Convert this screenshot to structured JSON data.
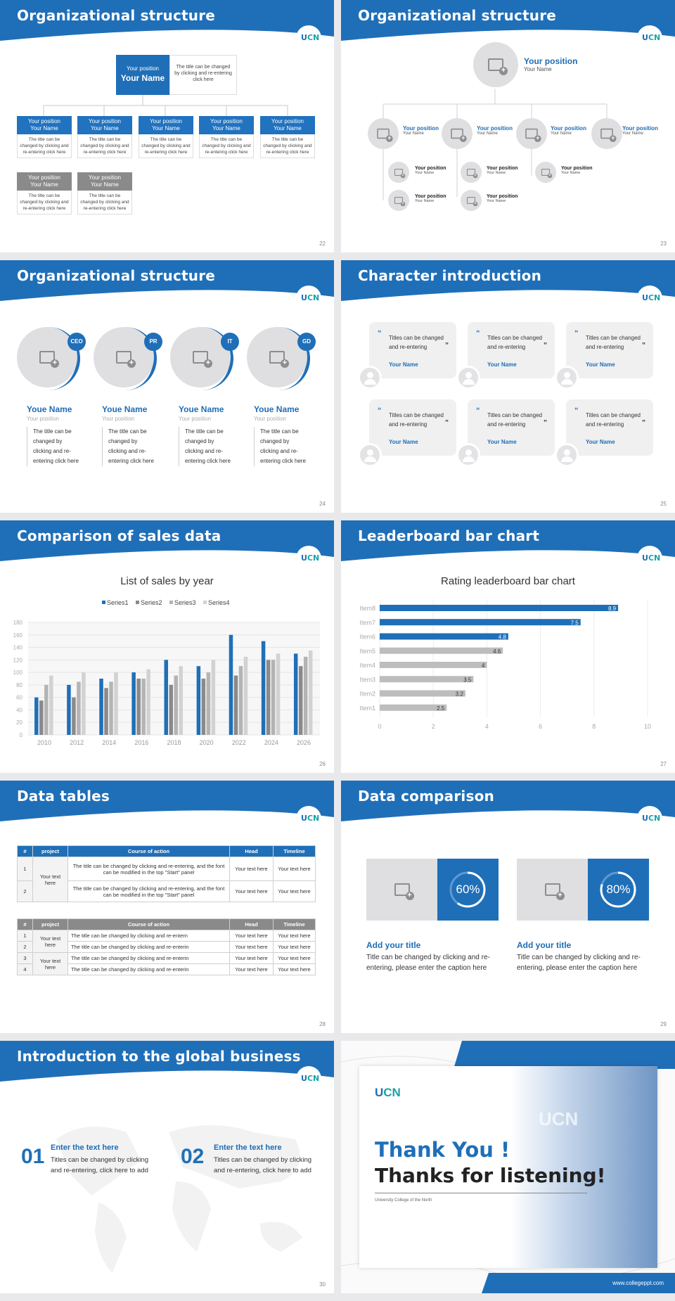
{
  "logo": {
    "text_a": "U",
    "text_b": "CN"
  },
  "slide22": {
    "title": "Organizational structure",
    "page": "22",
    "top": {
      "position": "Your position",
      "name": "Your Name",
      "desc": "The title can be changed by clicking and re-entering click here"
    },
    "nodes": [
      {
        "position": "Your position",
        "name": "Your Name",
        "desc": "The title can be changed by clicking and re-entering click here"
      },
      {
        "position": "Your position",
        "name": "Your Name",
        "desc": "The title can be changed by clicking and re-entering click here"
      },
      {
        "position": "Your position",
        "name": "Your Name",
        "desc": "The title can be changed by clicking and re-entering click here"
      },
      {
        "position": "Your position",
        "name": "Your Name",
        "desc": "The title can be changed by clicking and re-entering click here"
      },
      {
        "position": "Your position",
        "name": "Your Name",
        "desc": "The title can be changed by clicking and re-entering click here"
      },
      {
        "position": "Your position",
        "name": "Your Name",
        "desc": "The title can be changed by clicking and re-entering click here"
      },
      {
        "position": "Your position",
        "name": "Your Name",
        "desc": "The title can be changed by clicking and re-entering click here"
      }
    ]
  },
  "slide23": {
    "title": "Organizational structure",
    "page": "23",
    "top": {
      "position": "Your position",
      "name": "Your Name"
    },
    "mid": [
      {
        "position": "Your position",
        "name": "Your Name"
      },
      {
        "position": "Your position",
        "name": "Your Name"
      },
      {
        "position": "Your position",
        "name": "Your Name"
      },
      {
        "position": "Your position",
        "name": "Your Name"
      }
    ],
    "low": [
      {
        "position": "Your position",
        "name": "Your Name"
      },
      {
        "position": "Your position",
        "name": "Your Name"
      },
      {
        "position": "Your position",
        "name": "Your Name"
      },
      {
        "position": "Your position",
        "name": "Your Name"
      },
      {
        "position": "Your position",
        "name": "Your Name"
      }
    ]
  },
  "slide24": {
    "title": "Organizational structure",
    "page": "24",
    "people": [
      {
        "badge": "CEO",
        "name": "Youe Name",
        "position": "Your position",
        "desc": "The title can be changed by clicking and re-entering click here"
      },
      {
        "badge": "PR",
        "name": "Youe Name",
        "position": "Your position",
        "desc": "The title can be changed by clicking and re-entering click here"
      },
      {
        "badge": "IT",
        "name": "Youe Name",
        "position": "Your position",
        "desc": "The title can be changed by clicking and re-entering click here"
      },
      {
        "badge": "GD",
        "name": "Youe Name",
        "position": "Your position",
        "desc": "The title can be changed by clicking and re-entering click here"
      }
    ]
  },
  "slide25": {
    "title": "Character introduction",
    "page": "25",
    "cards": [
      {
        "text": "Titles can be changed and re-entering",
        "name": "Your Name"
      },
      {
        "text": "Titles can be changed and re-entering",
        "name": "Your Name"
      },
      {
        "text": "Titles can be changed and re-entering",
        "name": "Your Name"
      },
      {
        "text": "Titles can be changed and re-entering",
        "name": "Your Name"
      },
      {
        "text": "Titles can be changed and re-entering",
        "name": "Your Name"
      },
      {
        "text": "Titles can be changed and re-entering",
        "name": "Your Name"
      }
    ]
  },
  "slide26": {
    "title": "Comparison of sales data",
    "page": "26"
  },
  "slide27": {
    "title": "Leaderboard bar chart",
    "page": "27"
  },
  "chart_data": [
    {
      "type": "bar",
      "title": "List of sales by year",
      "categories": [
        "2010",
        "2012",
        "2014",
        "2016",
        "2018",
        "2020",
        "2022",
        "2024",
        "2026"
      ],
      "series": [
        {
          "name": "Series1",
          "color": "#1f6fb8",
          "values": [
            60,
            80,
            90,
            100,
            120,
            110,
            160,
            150,
            130
          ]
        },
        {
          "name": "Series2",
          "color": "#8a8a8a",
          "values": [
            55,
            60,
            75,
            90,
            80,
            90,
            95,
            120,
            110
          ]
        },
        {
          "name": "Series3",
          "color": "#b4b4b4",
          "values": [
            80,
            85,
            85,
            90,
            95,
            100,
            110,
            120,
            125
          ]
        },
        {
          "name": "Series4",
          "color": "#d2d2d2",
          "values": [
            95,
            100,
            100,
            105,
            110,
            120,
            125,
            130,
            135
          ]
        }
      ],
      "ylim": [
        0,
        180
      ],
      "yticks": [
        0,
        20,
        40,
        60,
        80,
        100,
        120,
        140,
        160,
        180
      ],
      "legend": "top",
      "grid": true
    },
    {
      "type": "bar",
      "orientation": "horizontal",
      "title": "Rating leaderboard bar chart",
      "categories": [
        "Item8",
        "Item7",
        "Item6",
        "Item5",
        "Item4",
        "Item3",
        "Item2",
        "Item1"
      ],
      "values": [
        8.9,
        7.5,
        4.8,
        4.6,
        4,
        3.5,
        3.2,
        2.5
      ],
      "highlight_color": "#1f6fb8",
      "base_color": "#bdbdbd",
      "highlight_count": 3,
      "xlim": [
        0,
        10
      ],
      "xticks": [
        0,
        2,
        4,
        6,
        8,
        10
      ],
      "grid": true
    }
  ],
  "slide28": {
    "title": "Data tables",
    "page": "28",
    "table1": {
      "headers": [
        "#",
        "project",
        "Course of action",
        "Head",
        "Timeline"
      ],
      "merged_project": "Your text here",
      "rows": [
        {
          "n": "1",
          "action": "The title can be changed by clicking and re-entering, and the font can be modified in the top \"Start\" panel",
          "head": "Your text here",
          "time": "Your text here"
        },
        {
          "n": "2",
          "action": "The title can be changed by clicking and re-entering, and the font can be modified in the top \"Start\" panel",
          "head": "Your text here",
          "time": "Your text here"
        }
      ]
    },
    "table2": {
      "headers": [
        "#",
        "project",
        "Course of action",
        "Head",
        "Timeline"
      ],
      "merged_a": "Your text here",
      "merged_b": "Your text here",
      "rows": [
        {
          "n": "1",
          "action": "The title can be changed by clicking and re-entern",
          "head": "Your text here",
          "time": "Your text here"
        },
        {
          "n": "2",
          "action": "The title can be changed by clicking and re-enterin",
          "head": "Your text here",
          "time": "Your text here"
        },
        {
          "n": "3",
          "action": "The title can be changed by clicking and re-enterin",
          "head": "Your text here",
          "time": "Your text here"
        },
        {
          "n": "4",
          "action": "The title can be changed by clicking and re-enterin",
          "head": "Your text here",
          "time": "Your text here"
        }
      ]
    }
  },
  "slide29": {
    "title": "Data comparison",
    "page": "29",
    "items": [
      {
        "percent": 60,
        "label": "60%",
        "heading": "Add your title",
        "desc": "Title can be changed by clicking and re-entering, please enter the caption here"
      },
      {
        "percent": 80,
        "label": "80%",
        "heading": "Add your title",
        "desc": "Title can be changed by clicking and re-entering, please enter the caption here"
      }
    ]
  },
  "slide30": {
    "title": "Introduction to the global business",
    "page": "30",
    "items": [
      {
        "num": "01",
        "heading": "Enter the text here",
        "desc": "Titles can be changed by clicking and re-entering, click here to add"
      },
      {
        "num": "02",
        "heading": "Enter the text here",
        "desc": "Titles can be changed by clicking and re-entering, click here to add"
      }
    ]
  },
  "slide31": {
    "line1": "Thank You !",
    "line2": "Thanks for listening!",
    "school": "University College of the North",
    "site": "www.collegeppt.com",
    "building_logo": "UCN"
  },
  "colors": {
    "blue": "#1f6fb8",
    "gray": "#8a8a8a",
    "light": "#dfdfe1"
  }
}
